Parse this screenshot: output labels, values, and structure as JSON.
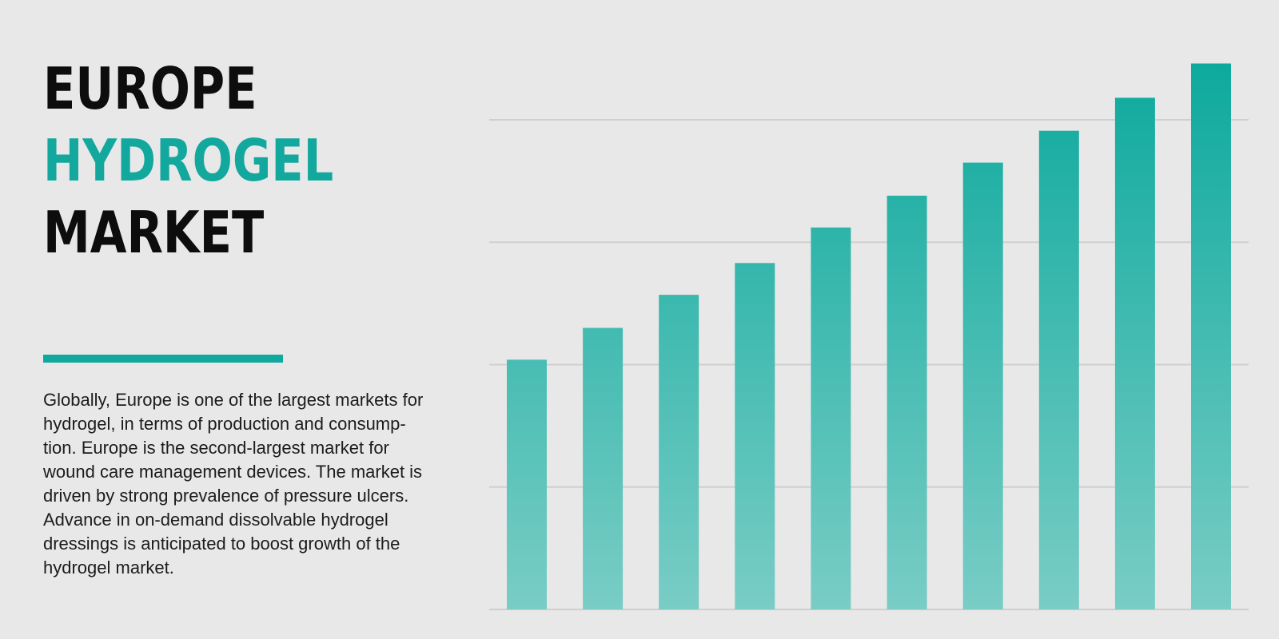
{
  "title": {
    "line1": "EUROPE",
    "line2": "HYDROGEL",
    "line3": "MARKET"
  },
  "description": {
    "lines": [
      "Globally, Europe is one of the largest markets for",
      "hydrogel, in terms of production and consump-",
      "tion. Europe is the second-largest market for",
      "wound care management devices. The market is",
      "driven by strong prevalence of pressure ulcers.",
      "Advance in on-demand dissolvable hydrogel",
      "dressings is anticipated to boost growth of the",
      "hydrogel market."
    ]
  },
  "colors": {
    "accent": "#13a89e",
    "title_dark": "#0d0d0d",
    "bar_top": "#0aa89c",
    "bar_bottom": "#79cdc5",
    "grid": "#cfcfcf",
    "background": "#e8e8e8"
  },
  "chart_data": {
    "type": "bar",
    "values": [
      2.04,
      2.3,
      2.57,
      2.83,
      3.12,
      3.38,
      3.65,
      3.91,
      4.18,
      4.46
    ],
    "ylim": [
      0,
      4.6
    ],
    "grid": true,
    "gridlines": [
      1,
      2,
      3,
      4
    ],
    "axis_labels_visible": false
  }
}
